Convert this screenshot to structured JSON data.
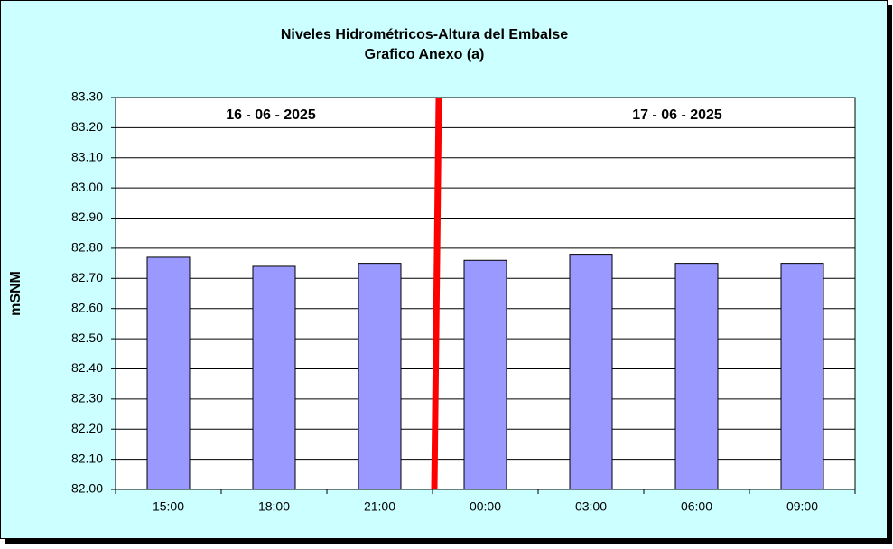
{
  "chart_data": {
    "type": "bar",
    "title": "Niveles Hidrométricos-Altura del Embalse",
    "subtitle": "Grafico Anexo (a)",
    "y_label": "mSNM",
    "annotations": [
      "16 - 06 - 2025",
      "17 - 06 - 2025"
    ],
    "categories": [
      "15:00",
      "18:00",
      "21:00",
      "00:00",
      "03:00",
      "06:00",
      "09:00"
    ],
    "values": [
      82.77,
      82.74,
      82.75,
      82.76,
      82.78,
      82.75,
      82.75
    ],
    "color": "#9999ff",
    "ylim": [
      82,
      83.3
    ],
    "yticks": [
      {
        "value": 82,
        "label": "82.00"
      },
      {
        "value": 82.1,
        "label": "82.10"
      },
      {
        "value": 82.2,
        "label": "82.20"
      },
      {
        "value": 82.3,
        "label": "82.30"
      },
      {
        "value": 82.4,
        "label": "82.40"
      },
      {
        "value": 82.5,
        "label": "82.50"
      },
      {
        "value": 82.6,
        "label": "82.60"
      },
      {
        "value": 82.7,
        "label": "82.70"
      },
      {
        "value": 82.8,
        "label": "82.80"
      },
      {
        "value": 82.9,
        "label": "82.90"
      },
      {
        "value": 83,
        "label": "83.00"
      },
      {
        "value": 83.1,
        "label": "83.10"
      },
      {
        "value": 83.2,
        "label": "83.20"
      },
      {
        "value": 83.3,
        "label": "83.30"
      }
    ],
    "grid": true
  }
}
